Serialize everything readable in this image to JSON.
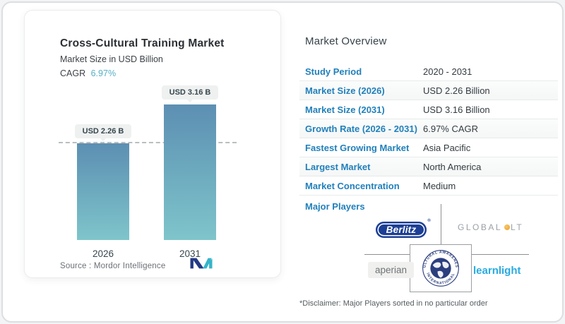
{
  "left_card": {
    "title": "Cross-Cultural Training Market",
    "subtitle": "Market Size in USD Billion",
    "cagr_label": "CAGR",
    "cagr_value": "6.97%",
    "source_label": "Source :",
    "source_value": "Mordor Intelligence"
  },
  "chart_data": {
    "type": "bar",
    "title": "Cross-Cultural Training Market",
    "subtitle": "Market Size in USD Billion",
    "unit": "USD Billion",
    "categories": [
      "2026",
      "2031"
    ],
    "values": [
      2.26,
      3.16
    ],
    "bar_value_labels": [
      "USD 2.26 B",
      "USD 3.16 B"
    ],
    "reference_line_value": 2.26,
    "ylim": [
      0,
      3.3
    ],
    "grid": "off",
    "bar_gradient_top": "#5d8fb3",
    "bar_gradient_bottom": "#7fc5cb"
  },
  "market_overview": {
    "heading": "Market Overview",
    "rows": [
      {
        "label": "Study Period",
        "value": "2020 - 2031"
      },
      {
        "label": "Market Size (2026)",
        "value": "USD 2.26 Billion"
      },
      {
        "label": "Market Size (2031)",
        "value": "USD 3.16 Billion"
      },
      {
        "label": "Growth Rate (2026 - 2031)",
        "value": "6.97% CAGR"
      },
      {
        "label": "Fastest Growing Market",
        "value": "Asia Pacific"
      },
      {
        "label": "Largest Market",
        "value": "North America"
      },
      {
        "label": "Market Concentration",
        "value": "Medium"
      }
    ],
    "major_players_label": "Major Players",
    "players": {
      "berlitz": "Berlitz",
      "berlitz_reg": "®",
      "global_word": "GLOBAL",
      "lt_word": "LT",
      "aperian": "aperian",
      "cai_arc_top": "CULTURAL AWARENESS",
      "cai_arc_bottom": "INTERNATIONAL",
      "learnlight": "learnlight"
    },
    "disclaimer": "*Disclaimer: Major Players sorted in no particular order"
  },
  "colors": {
    "label_blue": "#2180bb",
    "cagr_teal": "#57b0c4",
    "berlitz_navy": "#1c3f94",
    "learnlight_blue": "#29abe2",
    "globallt_dot_orange": "#ef9d2a",
    "cai_navy": "#2b3e7e"
  }
}
